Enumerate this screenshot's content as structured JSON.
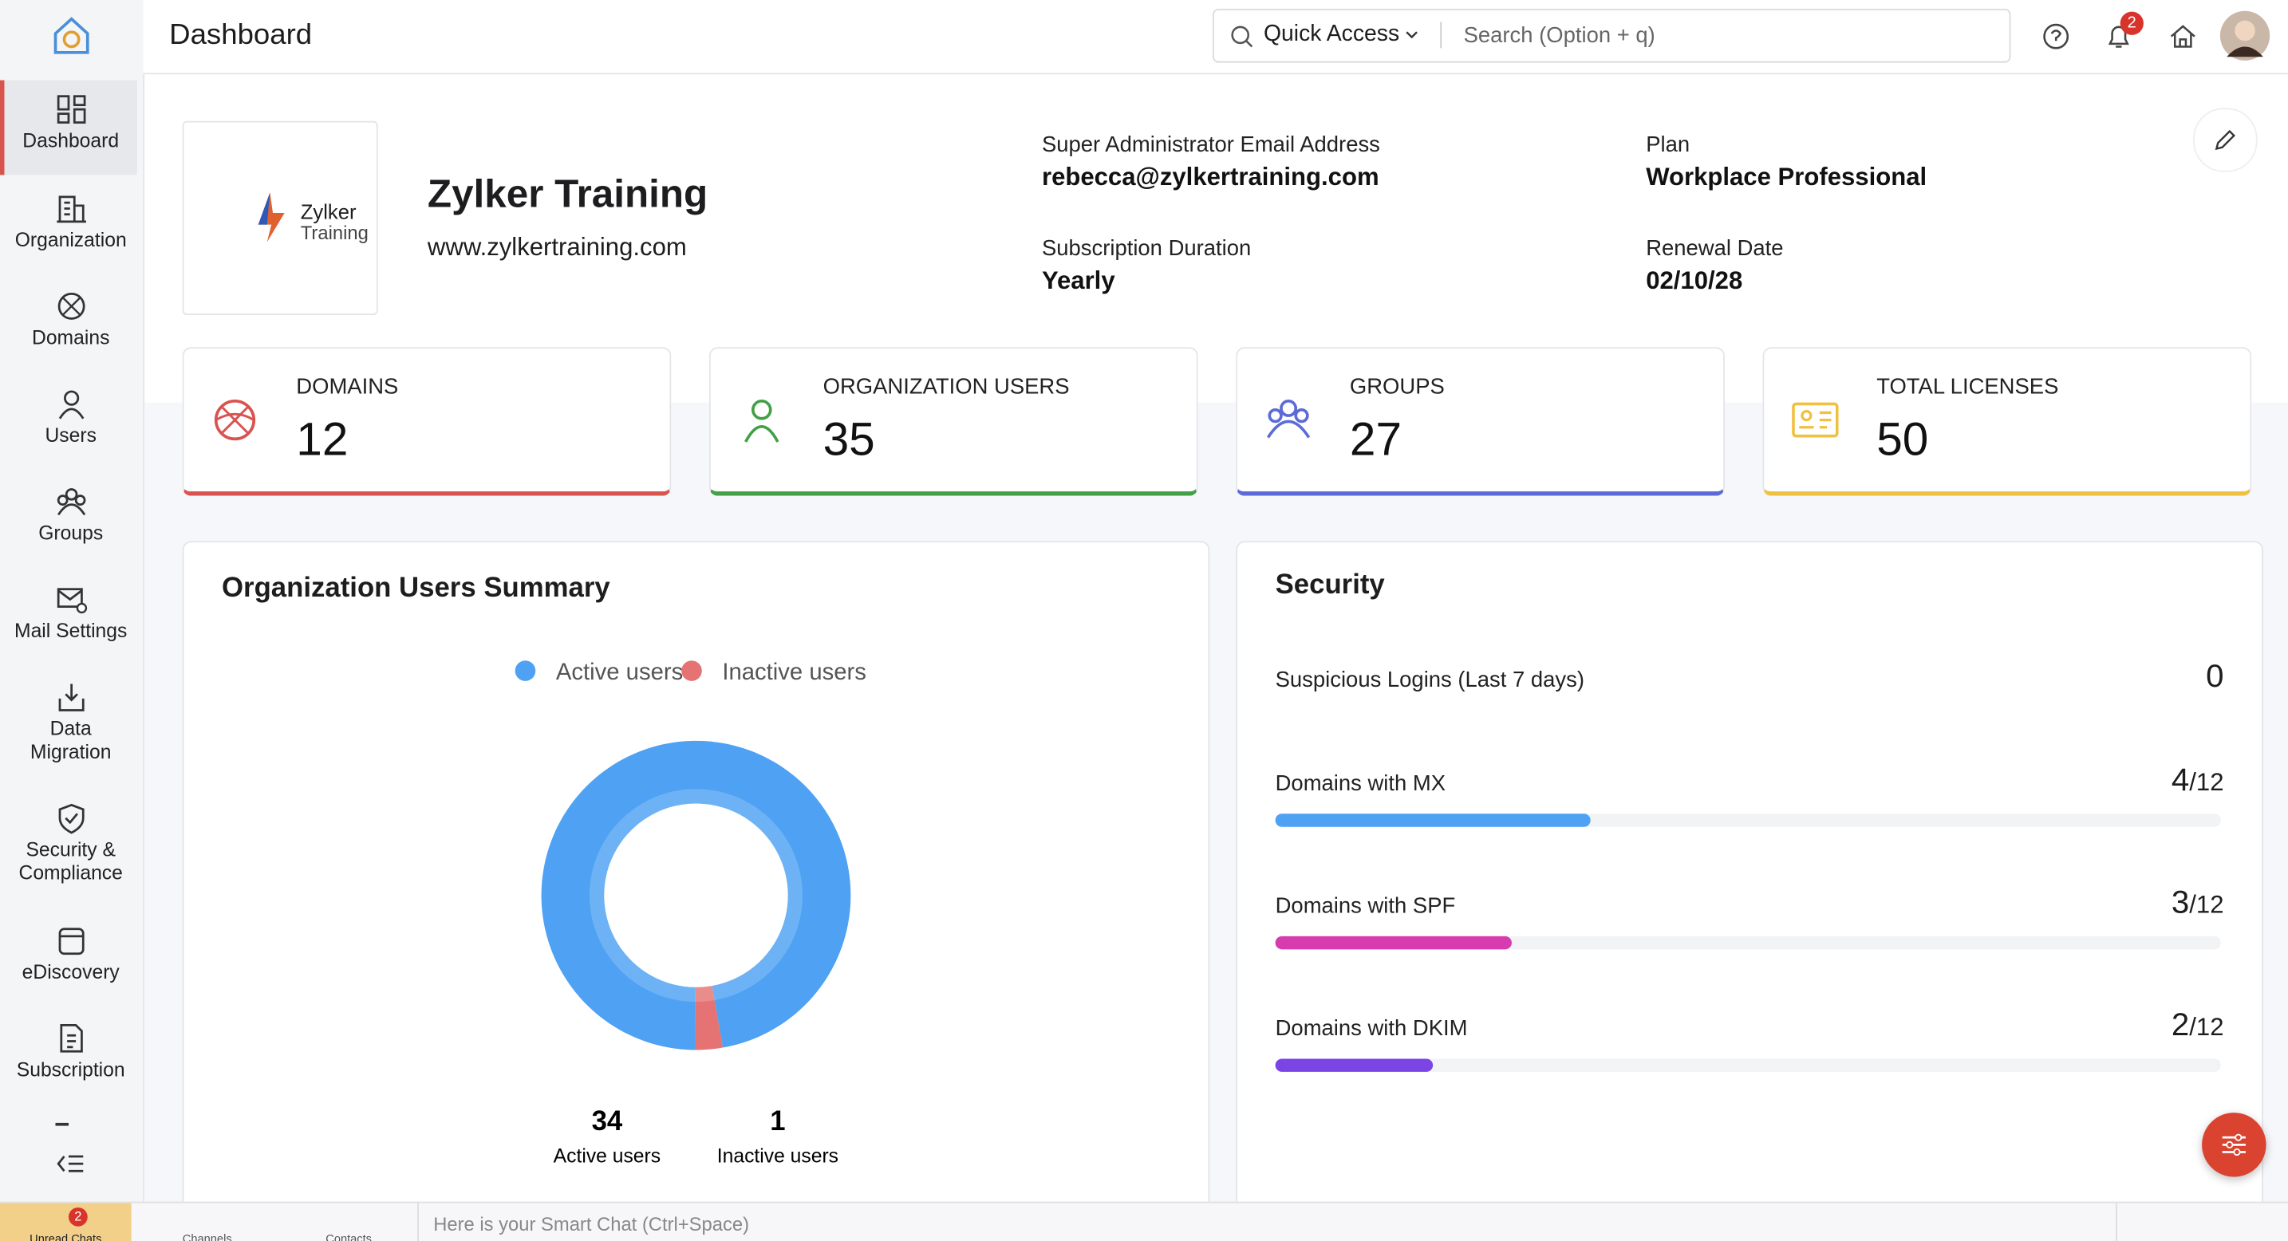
{
  "topbar": {
    "title": "Dashboard",
    "quick_access": "Quick Access",
    "search_placeholder": "Search (Option + q)",
    "notification_count": "2"
  },
  "sidebar": {
    "items": [
      "Dashboard",
      "Organization",
      "Domains",
      "Users",
      "Groups",
      "Mail Settings",
      "Data Migration",
      "Security & Compliance",
      "eDiscovery",
      "Subscription"
    ]
  },
  "profile": {
    "name": "Zylker Training",
    "website": "www.zylkertraining.com",
    "logo_line1": "Zylker",
    "logo_line2": "Training",
    "fields": [
      {
        "label": "Super Administrator Email Address",
        "value": "rebecca@zylkertraining.com"
      },
      {
        "label": "Plan",
        "value": "Workplace Professional"
      },
      {
        "label": "Subscription Duration",
        "value": "Yearly"
      },
      {
        "label": "Renewal Date",
        "value": "02/10/28"
      }
    ]
  },
  "stats": [
    {
      "label": "DOMAINS",
      "value": 12,
      "color": "#d9534f"
    },
    {
      "label": "ORGANIZATION USERS",
      "value": 35,
      "color": "#43a047"
    },
    {
      "label": "GROUPS",
      "value": 27,
      "color": "#5c6bd6"
    },
    {
      "label": "TOTAL LICENSES",
      "value": 50,
      "color": "#f0c040"
    }
  ],
  "users_summary": {
    "title": "Organization Users Summary",
    "type": "donut",
    "series": [
      {
        "name": "Active users",
        "value": 34,
        "color": "#4ea1f3"
      },
      {
        "name": "Inactive users",
        "value": 1,
        "color": "#e57373"
      }
    ]
  },
  "security": {
    "title": "Security",
    "suspicious": {
      "label": "Suspicious Logins (Last 7 days)",
      "value": 0
    },
    "rows": [
      {
        "label": "Domains with MX",
        "value": 4,
        "total": {
          "value": 12,
          "label": "/12"
        },
        "color": "#4ea1f3"
      },
      {
        "label": "Domains with SPF",
        "value": 3,
        "total": {
          "value": 12,
          "label": "/12"
        },
        "color": "#d63cad"
      },
      {
        "label": "Domains with DKIM",
        "value": 2,
        "total": {
          "value": 12,
          "label": "/12"
        },
        "color": "#7b45e6"
      }
    ]
  },
  "chat_bar": {
    "unread": "Unread Chats",
    "unread_count": "2",
    "channels": "Channels",
    "contacts": "Contacts",
    "placeholder": "Here is your Smart Chat (Ctrl+Space)"
  }
}
